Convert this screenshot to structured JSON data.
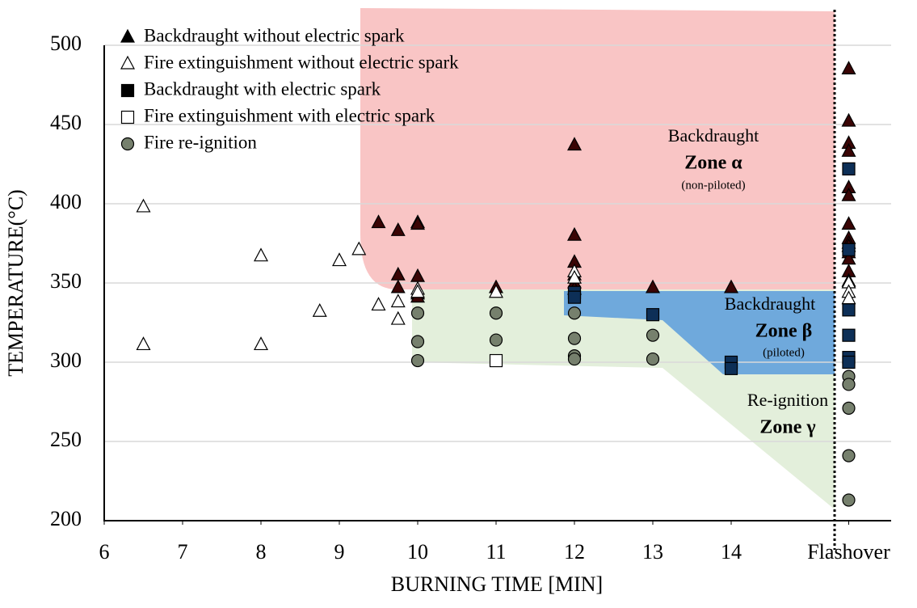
{
  "chart_data": {
    "type": "scatter",
    "xlabel": "BURNING TIME [MIN]",
    "ylabel": "TEMPERATURE(°C)",
    "xlim": [
      6,
      16
    ],
    "ylim": [
      200,
      500
    ],
    "xticks": [
      6,
      7,
      8,
      9,
      10,
      11,
      12,
      13,
      14,
      {
        "value": 15.5,
        "label": "Flashover"
      }
    ],
    "yticks": [
      200,
      250,
      300,
      350,
      400,
      450,
      500
    ],
    "grid": true,
    "legend": "upper left",
    "series": [
      {
        "name": "Backdraught without electric spark",
        "marker": "triangle",
        "color": "#3a0505",
        "x": [
          9.5,
          9.75,
          9.75,
          9.75,
          10,
          10,
          10,
          10,
          10,
          11,
          12,
          12,
          12,
          12,
          12,
          12,
          13,
          14,
          15.5,
          15.5,
          15.5,
          15.5,
          15.5,
          15.5,
          15.5,
          15.5,
          15.5,
          15.5,
          15.5,
          15.5,
          15.5,
          15.5
        ],
        "values": [
          388,
          383,
          355,
          347,
          388,
          387,
          354,
          343,
          341,
          347,
          437,
          380,
          363,
          355,
          350,
          346,
          347,
          347,
          485,
          452,
          438,
          433,
          410,
          405,
          387,
          378,
          375,
          373,
          369,
          365,
          357,
          351
        ]
      },
      {
        "name": "Fire extinguishment without electric spark",
        "marker": "triangle-open",
        "color": "#000000",
        "x": [
          6.5,
          6.5,
          8,
          8,
          8.75,
          9,
          9.25,
          9.5,
          9.75,
          9.75,
          10,
          10,
          11,
          12,
          12,
          15.5,
          15.5,
          15.5
        ],
        "values": [
          398,
          311,
          367,
          311,
          332,
          364,
          371,
          336,
          338,
          327,
          346,
          344,
          344,
          357,
          353,
          350,
          344,
          340
        ]
      },
      {
        "name": "Backdraught with electric spark",
        "marker": "square",
        "color": "#0d2f57",
        "x": [
          12,
          12,
          13,
          14,
          14,
          15.5,
          15.5,
          15.5,
          15.5,
          15.5,
          15.5
        ],
        "values": [
          344,
          341,
          330,
          300,
          296,
          422,
          371,
          333,
          317,
          303,
          300
        ]
      },
      {
        "name": "Fire extinguishment with electric spark",
        "marker": "square-open",
        "color": "#000000",
        "x": [
          11
        ],
        "values": [
          301
        ]
      },
      {
        "name": "Fire re-ignition",
        "marker": "circle",
        "color": "#76806d",
        "x": [
          10,
          10,
          10,
          11,
          11,
          12,
          12,
          12,
          12,
          13,
          13,
          15.5,
          15.5,
          15.5,
          15.5,
          15.5
        ],
        "values": [
          331,
          313,
          301,
          331,
          314,
          331,
          315,
          304,
          302,
          317,
          302,
          291,
          286,
          271,
          241,
          213
        ]
      }
    ],
    "annotations": [
      "Backdraught",
      "Zone α",
      "(non-piloted)",
      "Backdraught",
      "Zone β",
      "(piloted)",
      "Re-ignition",
      "Zone γ"
    ]
  }
}
